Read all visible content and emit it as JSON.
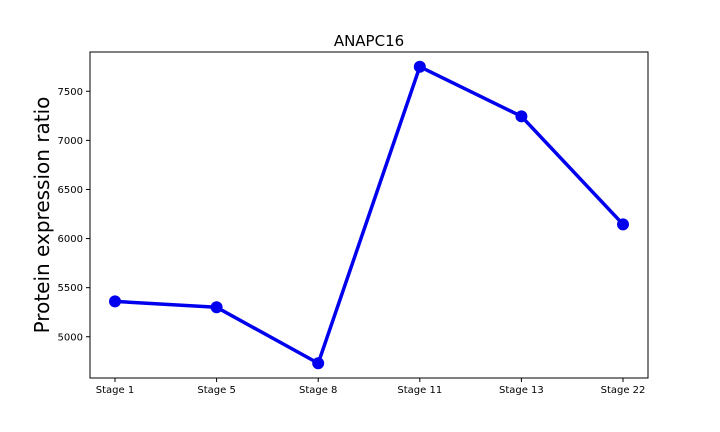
{
  "chart_data": {
    "type": "line",
    "title": "ANAPC16",
    "xlabel": "",
    "ylabel": "Protein expression ratio",
    "categories": [
      "Stage 1",
      "Stage 5",
      "Stage 8",
      "Stage 11",
      "Stage 13",
      "Stage 22"
    ],
    "series": [
      {
        "values": [
          5360,
          5300,
          4730,
          7750,
          7245,
          6145
        ],
        "color": "#0000ee",
        "marker": "circle"
      }
    ],
    "yticks": [
      5000,
      5500,
      6000,
      6500,
      7000,
      7500
    ],
    "ylim": [
      4580,
      7900
    ],
    "grid": false
  }
}
